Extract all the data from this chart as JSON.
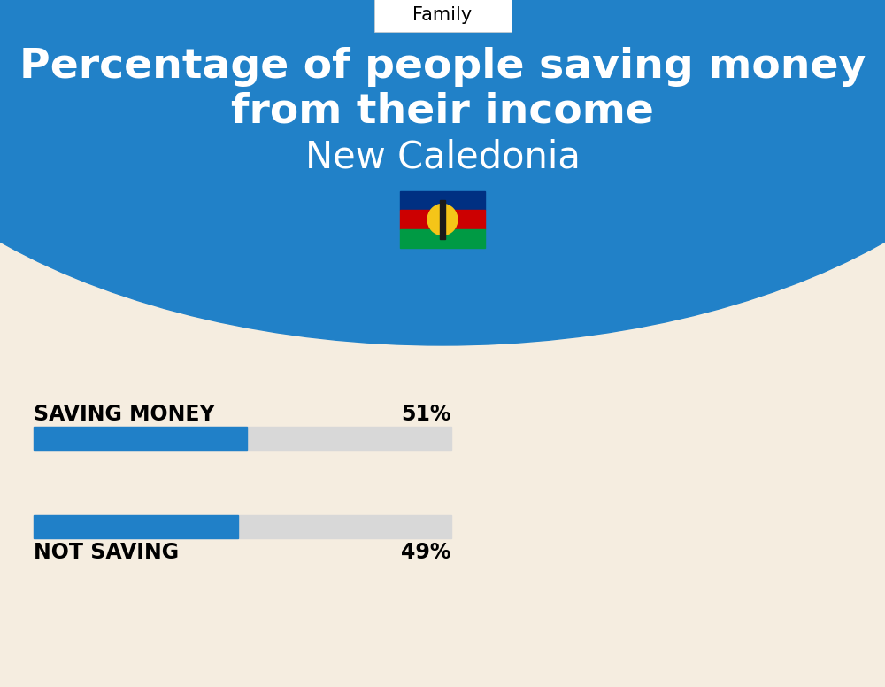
{
  "title_line1": "Percentage of people saving money",
  "title_line2": "from their income",
  "subtitle": "New Caledonia",
  "category_label": "Family",
  "bg_blue": "#2181C8",
  "bg_cream": "#F5EDE0",
  "bar_blue": "#2080C8",
  "bar_gray": "#D8D8D8",
  "bar1_label": "SAVING MONEY",
  "bar1_value": 51,
  "bar1_pct": "51%",
  "bar2_label": "NOT SAVING",
  "bar2_value": 49,
  "bar2_pct": "49%",
  "bar_max": 100,
  "title_fontsize": 34,
  "subtitle_fontsize": 30,
  "label_fontsize": 17,
  "pct_fontsize": 17,
  "category_fontsize": 15
}
